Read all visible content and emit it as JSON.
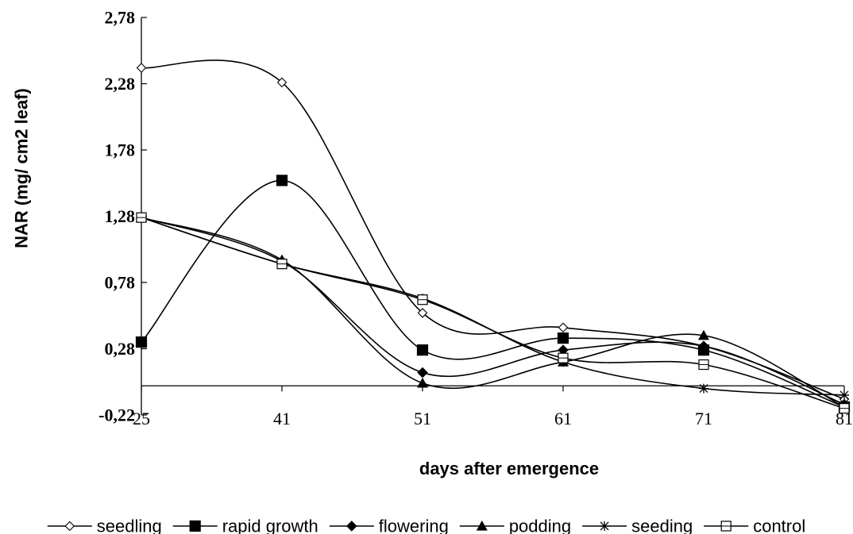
{
  "chart_data": {
    "type": "line",
    "xlabel": "days after emergence",
    "ylabel": "NAR (mg/ cm2 leaf)",
    "categories": [
      "25",
      "41",
      "51",
      "61",
      "71",
      "81"
    ],
    "y_ticks": [
      "2,78",
      "2,28",
      "1,78",
      "1,28",
      "0,78",
      "0,28",
      "-0,22"
    ],
    "ylim": [
      -0.22,
      2.78
    ],
    "smooth": true,
    "grid": false,
    "legend_position": "bottom",
    "series": [
      {
        "name": "seedling",
        "marker": "diamond-open",
        "values": [
          2.4,
          2.29,
          0.55,
          0.44,
          0.3,
          -0.1
        ]
      },
      {
        "name": "rapid growth",
        "marker": "square-filled",
        "values": [
          0.33,
          1.55,
          0.27,
          0.36,
          0.27,
          -0.16
        ]
      },
      {
        "name": "flowering",
        "marker": "diamond-filled",
        "values": [
          1.27,
          0.94,
          0.1,
          0.27,
          0.3,
          -0.14
        ]
      },
      {
        "name": "podding",
        "marker": "triangle-filled",
        "values": [
          1.27,
          0.95,
          0.02,
          0.18,
          0.38,
          -0.16
        ]
      },
      {
        "name": "seeding",
        "marker": "star",
        "values": [
          1.27,
          0.92,
          0.66,
          0.18,
          -0.02,
          -0.07
        ]
      },
      {
        "name": "control",
        "marker": "square-open",
        "values": [
          1.27,
          0.92,
          0.65,
          0.21,
          0.16,
          -0.17
        ]
      }
    ]
  }
}
